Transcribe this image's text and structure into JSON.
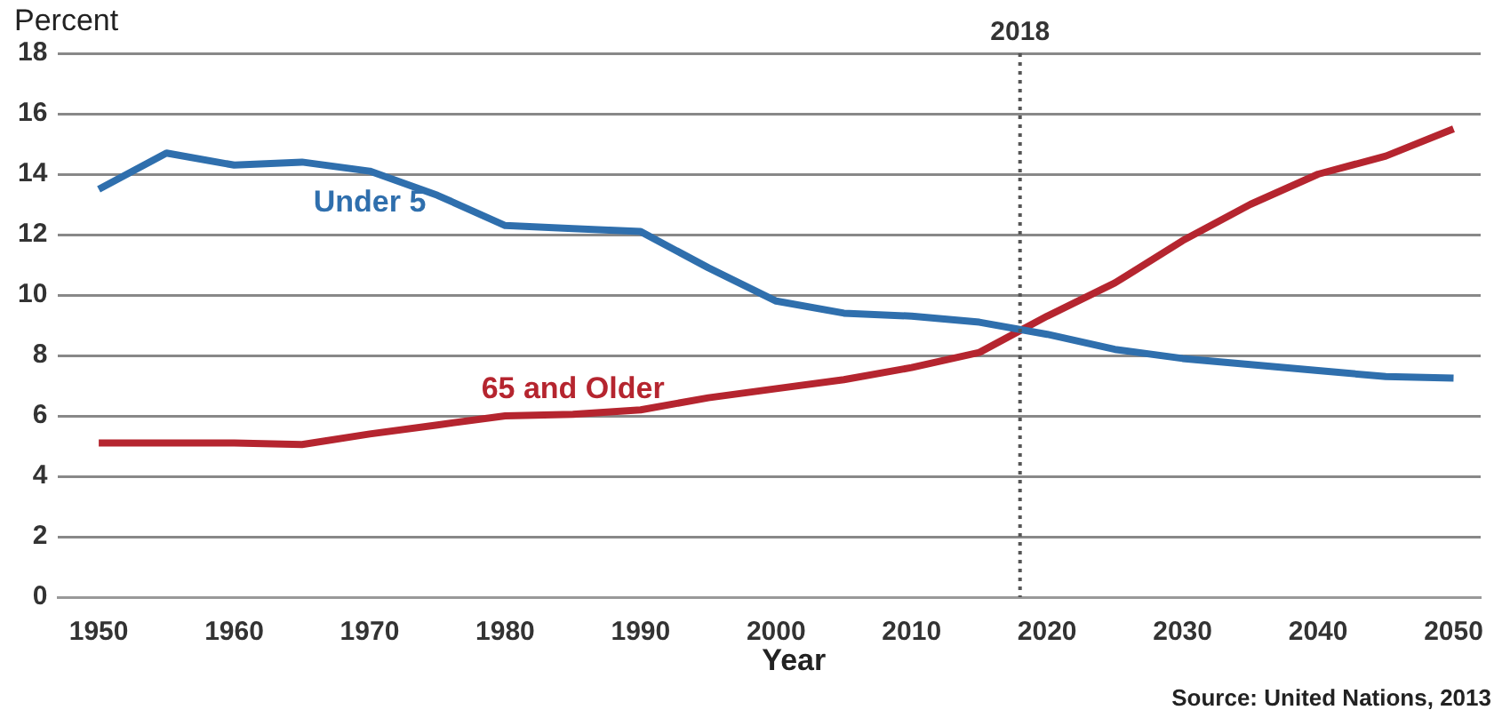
{
  "chart_data": {
    "type": "line",
    "xlabel": "Year",
    "ylabel": "Percent",
    "x": [
      1950,
      1955,
      1960,
      1965,
      1970,
      1975,
      1980,
      1985,
      1990,
      1995,
      2000,
      2005,
      2010,
      2015,
      2020,
      2025,
      2030,
      2035,
      2040,
      2045,
      2050
    ],
    "series": [
      {
        "name": "Under 5",
        "color": "#2f6fad",
        "values": [
          13.5,
          14.7,
          14.3,
          14.4,
          14.1,
          13.3,
          12.3,
          12.2,
          12.1,
          10.9,
          9.8,
          9.4,
          9.3,
          9.1,
          8.7,
          8.2,
          7.9,
          7.7,
          7.5,
          7.3,
          7.25
        ]
      },
      {
        "name": "65 and Older",
        "color": "#b5252f",
        "values": [
          5.1,
          5.1,
          5.1,
          5.05,
          5.4,
          5.7,
          6.0,
          6.05,
          6.2,
          6.6,
          6.9,
          7.2,
          7.6,
          8.1,
          9.3,
          10.4,
          11.8,
          13.0,
          14.0,
          14.6,
          15.5
        ]
      }
    ],
    "xlim": [
      1947,
      2052
    ],
    "xticks": [
      1950,
      1960,
      1970,
      1980,
      1990,
      2000,
      2010,
      2020,
      2030,
      2040,
      2050
    ],
    "ylim": [
      0,
      18
    ],
    "yticks": [
      0,
      2,
      4,
      6,
      8,
      10,
      12,
      14,
      16,
      18
    ],
    "grid": "y",
    "legend": false,
    "marker": "none",
    "line_style": "solid",
    "ref_lines": [
      {
        "axis": "x",
        "value": 2018,
        "label": "2018",
        "color": "#555555",
        "line_style": "dotted"
      }
    ],
    "annotations": [
      "Source: United Nations, 2013"
    ]
  }
}
